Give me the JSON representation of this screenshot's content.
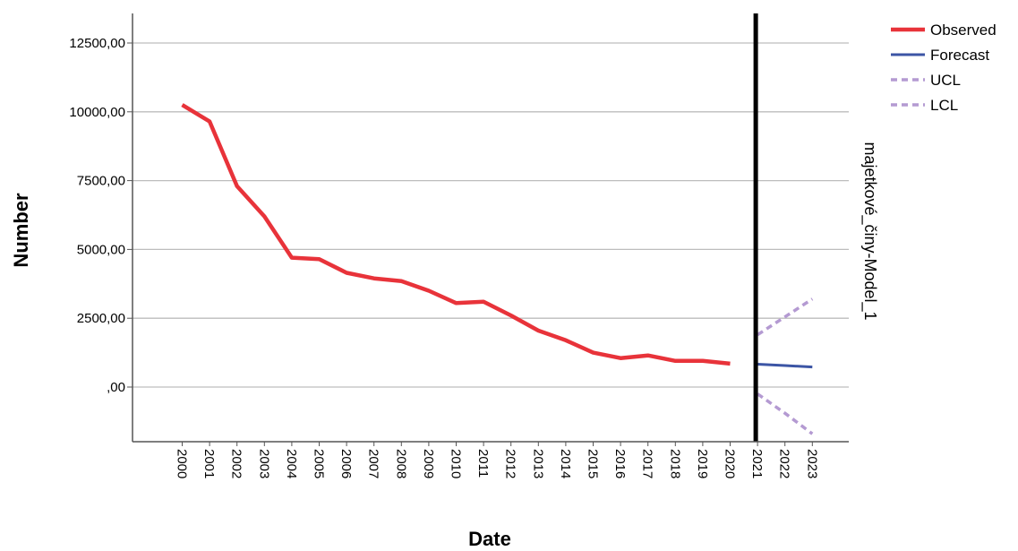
{
  "chart_data": {
    "type": "line",
    "title": "",
    "xlabel": "Date",
    "ylabel": "Number",
    "model_label": "majetkové_činy-Model_1",
    "categories": [
      "2000",
      "2001",
      "2002",
      "2003",
      "2004",
      "2005",
      "2006",
      "2007",
      "2008",
      "2009",
      "2010",
      "2011",
      "2012",
      "2013",
      "2014",
      "2015",
      "2016",
      "2017",
      "2018",
      "2019",
      "2020",
      "2021",
      "2022",
      "2023"
    ],
    "ylim": [
      -2000,
      13500
    ],
    "yticks": [
      {
        "value": 0,
        "label": ",00"
      },
      {
        "value": 2500,
        "label": "2500,00"
      },
      {
        "value": 5000,
        "label": "5000,00"
      },
      {
        "value": 7500,
        "label": "7500,00"
      },
      {
        "value": 10000,
        "label": "10000,00"
      },
      {
        "value": 12500,
        "label": "12500,00"
      }
    ],
    "grid": true,
    "legend_position": "top-right",
    "forecast_start": "2021",
    "series": [
      {
        "name": "Observed",
        "color": "#e8333a",
        "style": "solid",
        "x": [
          "2000",
          "2001",
          "2002",
          "2003",
          "2004",
          "2005",
          "2006",
          "2007",
          "2008",
          "2009",
          "2010",
          "2011",
          "2012",
          "2013",
          "2014",
          "2015",
          "2016",
          "2017",
          "2018",
          "2019",
          "2020"
        ],
        "values": [
          10250,
          9650,
          7300,
          6200,
          4700,
          4650,
          4150,
          3950,
          3850,
          3500,
          3050,
          3100,
          2600,
          2050,
          1700,
          1250,
          1050,
          1150,
          950,
          950,
          850
        ]
      },
      {
        "name": "Forecast",
        "color": "#3c55a5",
        "style": "solid",
        "x": [
          "2021",
          "2022",
          "2023"
        ],
        "values": [
          830,
          780,
          730
        ]
      },
      {
        "name": "UCL",
        "color": "#b49ad2",
        "style": "dashed",
        "x": [
          "2021",
          "2022",
          "2023"
        ],
        "values": [
          1900,
          2550,
          3200
        ]
      },
      {
        "name": "LCL",
        "color": "#b49ad2",
        "style": "dashed",
        "x": [
          "2021",
          "2022",
          "2023"
        ],
        "values": [
          -250,
          -950,
          -1700
        ]
      }
    ]
  }
}
